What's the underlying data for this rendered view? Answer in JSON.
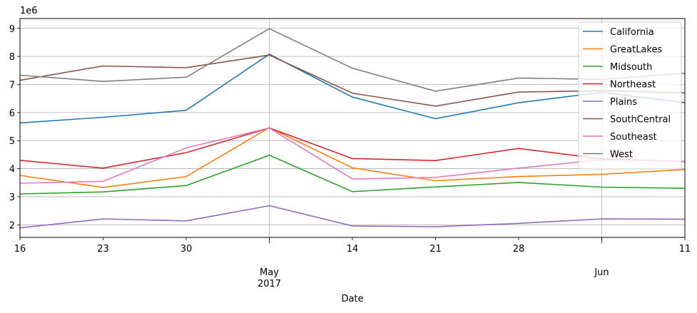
{
  "chart_data": {
    "type": "line",
    "xlabel": "Date",
    "ylabel": "",
    "offset_text": "1e6",
    "ylim": [
      1.55,
      9.35
    ],
    "yticks": [
      2,
      3,
      4,
      5,
      6,
      7,
      8,
      9
    ],
    "grid": true,
    "legend_position": "top-right",
    "x": [
      "2017-04-16",
      "2017-04-23",
      "2017-04-30",
      "2017-05-07",
      "2017-05-14",
      "2017-05-21",
      "2017-05-28",
      "2017-06-04",
      "2017-06-11"
    ],
    "x_tick_labels": [
      "16",
      "23",
      "30",
      "",
      "14",
      "21",
      "28",
      "",
      "11"
    ],
    "x_major_labels": [
      {
        "at": "2017-05-07",
        "month": "May",
        "year": "2017"
      },
      {
        "at": "2017-06-04",
        "month": "Jun",
        "year": ""
      }
    ],
    "series": [
      {
        "name": "California",
        "color": "#1f77b4",
        "values": [
          5.63,
          5.83,
          6.08,
          8.08,
          6.55,
          5.78,
          6.35,
          6.72,
          6.35
        ]
      },
      {
        "name": "GreatLakes",
        "color": "#ff7f0e",
        "values": [
          3.76,
          3.33,
          3.72,
          5.46,
          4.03,
          3.57,
          3.72,
          3.8,
          3.97
        ]
      },
      {
        "name": "Midsouth",
        "color": "#2ca02c",
        "values": [
          3.1,
          3.17,
          3.4,
          4.48,
          3.18,
          3.35,
          3.51,
          3.34,
          3.3
        ]
      },
      {
        "name": "Northeast",
        "color": "#d62728",
        "values": [
          4.3,
          4.02,
          4.57,
          5.45,
          4.36,
          4.29,
          4.72,
          4.35,
          4.25
        ]
      },
      {
        "name": "Plains",
        "color": "#9467bd",
        "values": [
          1.89,
          2.21,
          2.14,
          2.68,
          1.96,
          1.93,
          2.05,
          2.21,
          2.2
        ]
      },
      {
        "name": "SouthCentral",
        "color": "#8c564b",
        "values": [
          7.15,
          7.66,
          7.6,
          8.05,
          6.69,
          6.23,
          6.73,
          6.78,
          6.7
        ]
      },
      {
        "name": "Southeast",
        "color": "#e377c2",
        "values": [
          3.48,
          3.55,
          4.74,
          5.45,
          3.63,
          3.69,
          4.02,
          4.32,
          4.26
        ]
      },
      {
        "name": "West",
        "color": "#7f7f7f",
        "values": [
          7.33,
          7.11,
          7.26,
          8.99,
          7.58,
          6.76,
          7.23,
          7.18,
          7.4
        ]
      }
    ]
  }
}
